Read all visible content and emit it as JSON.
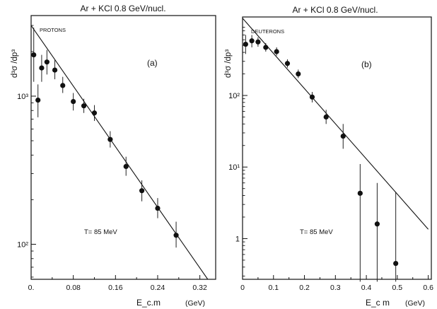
{
  "chart_data": [
    {
      "type": "scatter",
      "panel_label": "(a)",
      "title": "Ar + KCl 0.8  GeV/nucl.",
      "species": "PROTONS",
      "ylabel": "d³σ /dp³",
      "xlabel": "E_c.m",
      "x_unit": "(GeV)",
      "annotation": "T=  85 MeV",
      "y_scale": "log",
      "xlim": [
        0,
        0.35
      ],
      "ylim": [
        58,
        3500
      ],
      "x_ticks": [
        "0.",
        "0.08",
        "0.16",
        "0.24",
        "0.32"
      ],
      "x_tick_values": [
        0,
        0.08,
        0.16,
        0.24,
        0.32
      ],
      "y_ticks": [
        "10³",
        "10²"
      ],
      "y_tick_values": [
        1000,
        100
      ],
      "points": [
        {
          "x": 0.005,
          "y": 1900,
          "err_lo": 1250,
          "err_hi": 2900
        },
        {
          "x": 0.013,
          "y": 940,
          "err_lo": 720,
          "err_hi": 1200
        },
        {
          "x": 0.02,
          "y": 1550,
          "err_lo": 1250,
          "err_hi": 1900
        },
        {
          "x": 0.03,
          "y": 1700,
          "err_lo": 1400,
          "err_hi": 2050
        },
        {
          "x": 0.045,
          "y": 1500,
          "err_lo": 1300,
          "err_hi": 1750
        },
        {
          "x": 0.06,
          "y": 1180,
          "err_lo": 1050,
          "err_hi": 1350
        },
        {
          "x": 0.08,
          "y": 920,
          "err_lo": 800,
          "err_hi": 1050
        },
        {
          "x": 0.1,
          "y": 860,
          "err_lo": 770,
          "err_hi": 960
        },
        {
          "x": 0.12,
          "y": 770,
          "err_lo": 680,
          "err_hi": 870
        },
        {
          "x": 0.15,
          "y": 510,
          "err_lo": 450,
          "err_hi": 580
        },
        {
          "x": 0.18,
          "y": 335,
          "err_lo": 290,
          "err_hi": 390
        },
        {
          "x": 0.21,
          "y": 230,
          "err_lo": 195,
          "err_hi": 270
        },
        {
          "x": 0.24,
          "y": 175,
          "err_lo": 150,
          "err_hi": 205
        },
        {
          "x": 0.275,
          "y": 115,
          "err_lo": 95,
          "err_hi": 142
        }
      ],
      "fit_line": {
        "x": [
          0,
          0.335
        ],
        "y": [
          3000,
          58
        ]
      }
    },
    {
      "type": "scatter",
      "panel_label": "(b)",
      "title": "Ar + KCl 0.8  GeV/nucl.",
      "species": "DEUTERONS",
      "ylabel": "d³σ /dp³",
      "xlabel": "E_c m",
      "x_unit": "(GeV)",
      "annotation": "T=  85 MeV",
      "y_scale": "log",
      "xlim": [
        0,
        0.61
      ],
      "ylim": [
        0.27,
        1250
      ],
      "x_ticks": [
        "0",
        "0.1",
        "0.2",
        "0.3",
        "0.4",
        "0.5",
        "0.6"
      ],
      "x_tick_values": [
        0,
        0.1,
        0.2,
        0.3,
        0.4,
        0.5,
        0.6
      ],
      "y_ticks": [
        "10²",
        "10¹",
        "1"
      ],
      "y_tick_values": [
        100,
        10,
        1
      ],
      "points": [
        {
          "x": 0.01,
          "y": 520,
          "err_lo": 380,
          "err_hi": 700
        },
        {
          "x": 0.03,
          "y": 580,
          "err_lo": 470,
          "err_hi": 700
        },
        {
          "x": 0.05,
          "y": 560,
          "err_lo": 480,
          "err_hi": 650
        },
        {
          "x": 0.075,
          "y": 470,
          "err_lo": 410,
          "err_hi": 540
        },
        {
          "x": 0.11,
          "y": 410,
          "err_lo": 360,
          "err_hi": 470
        },
        {
          "x": 0.145,
          "y": 280,
          "err_lo": 245,
          "err_hi": 320
        },
        {
          "x": 0.18,
          "y": 200,
          "err_lo": 175,
          "err_hi": 230
        },
        {
          "x": 0.225,
          "y": 95,
          "err_lo": 80,
          "err_hi": 112
        },
        {
          "x": 0.27,
          "y": 50,
          "err_lo": 40,
          "err_hi": 63
        },
        {
          "x": 0.325,
          "y": 27,
          "err_lo": 18,
          "err_hi": 40
        },
        {
          "x": 0.38,
          "y": 4.3,
          "err_lo": 0.25,
          "err_hi": 11
        },
        {
          "x": 0.435,
          "y": 1.6,
          "err_lo": 0.25,
          "err_hi": 6
        },
        {
          "x": 0.495,
          "y": 0.45,
          "err_lo": 0.25,
          "err_hi": 4.5
        }
      ],
      "fit_line": {
        "x": [
          0,
          0.6
        ],
        "y": [
          1200,
          1.35
        ]
      }
    }
  ]
}
